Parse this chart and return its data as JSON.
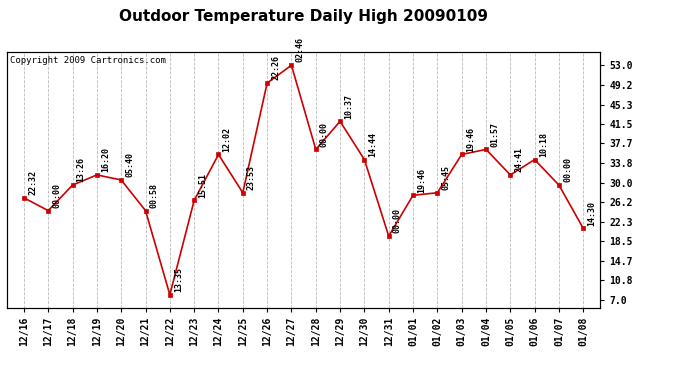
{
  "title": "Outdoor Temperature Daily High 20090109",
  "copyright": "Copyright 2009 Cartronics.com",
  "x_labels": [
    "12/16",
    "12/17",
    "12/18",
    "12/19",
    "12/20",
    "12/21",
    "12/22",
    "12/23",
    "12/24",
    "12/25",
    "12/26",
    "12/27",
    "12/28",
    "12/29",
    "12/30",
    "12/31",
    "01/01",
    "01/02",
    "01/03",
    "01/04",
    "01/05",
    "01/06",
    "01/07",
    "01/08"
  ],
  "y_values": [
    27.0,
    24.5,
    29.5,
    31.5,
    30.5,
    24.5,
    8.0,
    26.5,
    35.5,
    28.0,
    49.5,
    53.0,
    36.5,
    42.0,
    34.5,
    19.5,
    27.5,
    28.0,
    35.5,
    36.5,
    31.5,
    34.5,
    29.5,
    21.0
  ],
  "time_labels": [
    "22:32",
    "00:00",
    "13:26",
    "16:20",
    "05:40",
    "00:58",
    "13:35",
    "15:51",
    "12:02",
    "23:53",
    "22:26",
    "02:46",
    "00:00",
    "10:37",
    "14:44",
    "00:00",
    "19:46",
    "05:45",
    "19:46",
    "01:57",
    "24:41",
    "10:18",
    "00:00",
    "14:30"
  ],
  "y_ticks": [
    7.0,
    10.8,
    14.7,
    18.5,
    22.3,
    26.2,
    30.0,
    33.8,
    37.7,
    41.5,
    45.3,
    49.2,
    53.0
  ],
  "ylim": [
    5.5,
    55.5
  ],
  "line_color": "#cc0000",
  "marker_color": "#cc0000",
  "bg_color": "#ffffff",
  "grid_color": "#bbbbbb",
  "title_fontsize": 11,
  "copyright_fontsize": 6.5,
  "label_fontsize": 6,
  "tick_fontsize": 7
}
